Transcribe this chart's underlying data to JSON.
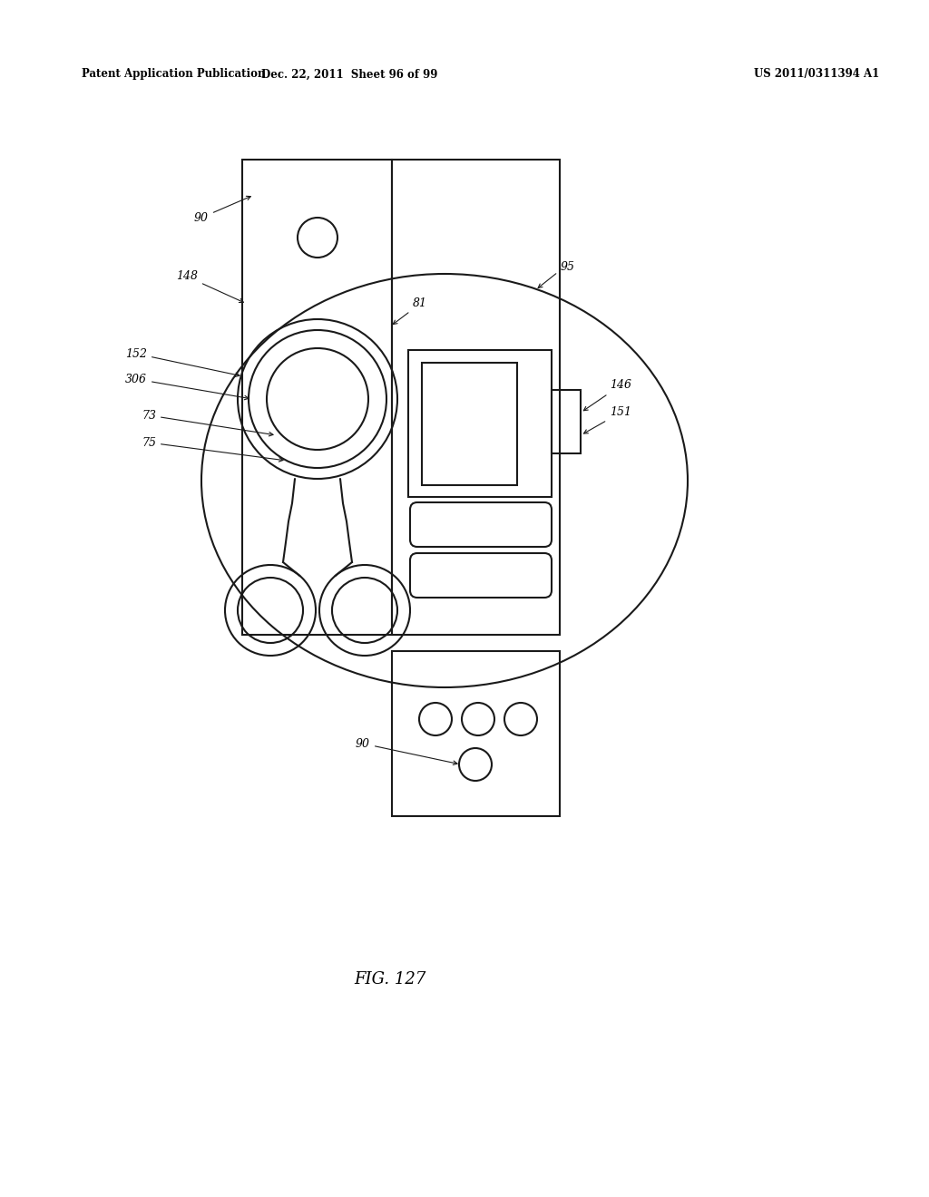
{
  "bg_color": "#ffffff",
  "line_color": "#1a1a1a",
  "header_left": "Patent Application Publication",
  "header_mid": "Dec. 22, 2011  Sheet 96 of 99",
  "header_right": "US 2011/0311394 A1",
  "fig_label": "FIG. 127"
}
